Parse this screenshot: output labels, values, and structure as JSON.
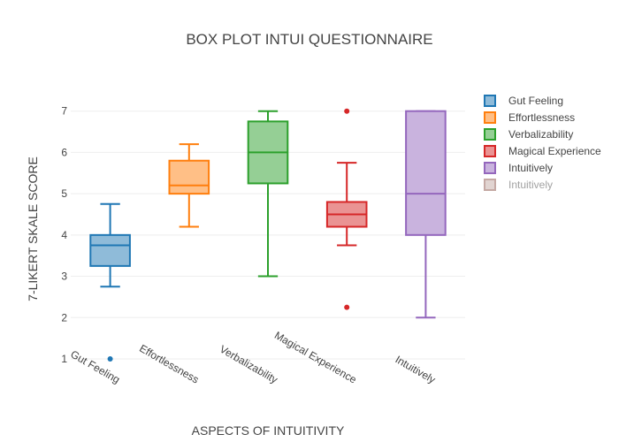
{
  "chart_data": {
    "type": "box",
    "title": "BOX PLOT INTUI QUESTIONNAIRE",
    "xlabel": "ASPECTS OF INTUITIVITY",
    "ylabel": "7-LIKERT SKALE SCORE",
    "ylim": [
      0.7,
      7.55
    ],
    "yticks": [
      1,
      2,
      3,
      4,
      5,
      6,
      7
    ],
    "grid": true,
    "legend_position": "right",
    "series": [
      {
        "name": "Gut Feeling",
        "color": "#1f77b4",
        "fill": "#8fbbd9",
        "min": 2.75,
        "q1": 3.25,
        "median": 3.75,
        "q3": 4.0,
        "max": 4.75,
        "outliers": [
          1
        ]
      },
      {
        "name": "Effortlessness",
        "color": "#ff7f0e",
        "fill": "#ffbf86",
        "min": 4.2,
        "q1": 5.0,
        "median": 5.2,
        "q3": 5.8,
        "max": 6.2,
        "outliers": []
      },
      {
        "name": "Verbalizability",
        "color": "#2ca02c",
        "fill": "#95cf95",
        "min": 3.0,
        "q1": 5.25,
        "median": 6.0,
        "q3": 6.75,
        "max": 7.0,
        "outliers": []
      },
      {
        "name": "Magical Experience",
        "color": "#d62728",
        "fill": "#ea9393",
        "min": 3.75,
        "q1": 4.2,
        "median": 4.5,
        "q3": 4.8,
        "max": 5.75,
        "outliers": [
          2.25,
          7
        ]
      },
      {
        "name": "Intuitively",
        "color": "#9467bd",
        "fill": "#c9b3de",
        "min": 2.0,
        "q1": 4.0,
        "median": 5.0,
        "q3": 7.0,
        "max": 7.0,
        "outliers": []
      }
    ],
    "legend": [
      {
        "name": "Gut Feeling",
        "color": "#1f77b4",
        "fill": "#8fbbd9",
        "faded": false
      },
      {
        "name": "Effortlessness",
        "color": "#ff7f0e",
        "fill": "#ffbf86",
        "faded": false
      },
      {
        "name": "Verbalizability",
        "color": "#2ca02c",
        "fill": "#95cf95",
        "faded": false
      },
      {
        "name": "Magical Experience",
        "color": "#d62728",
        "fill": "#ea9393",
        "faded": false
      },
      {
        "name": "Intuitively",
        "color": "#9467bd",
        "fill": "#c9b3de",
        "faded": false
      },
      {
        "name": "Intuitively",
        "color": "#8c564b",
        "fill": "#c5aba5",
        "faded": true
      }
    ]
  }
}
